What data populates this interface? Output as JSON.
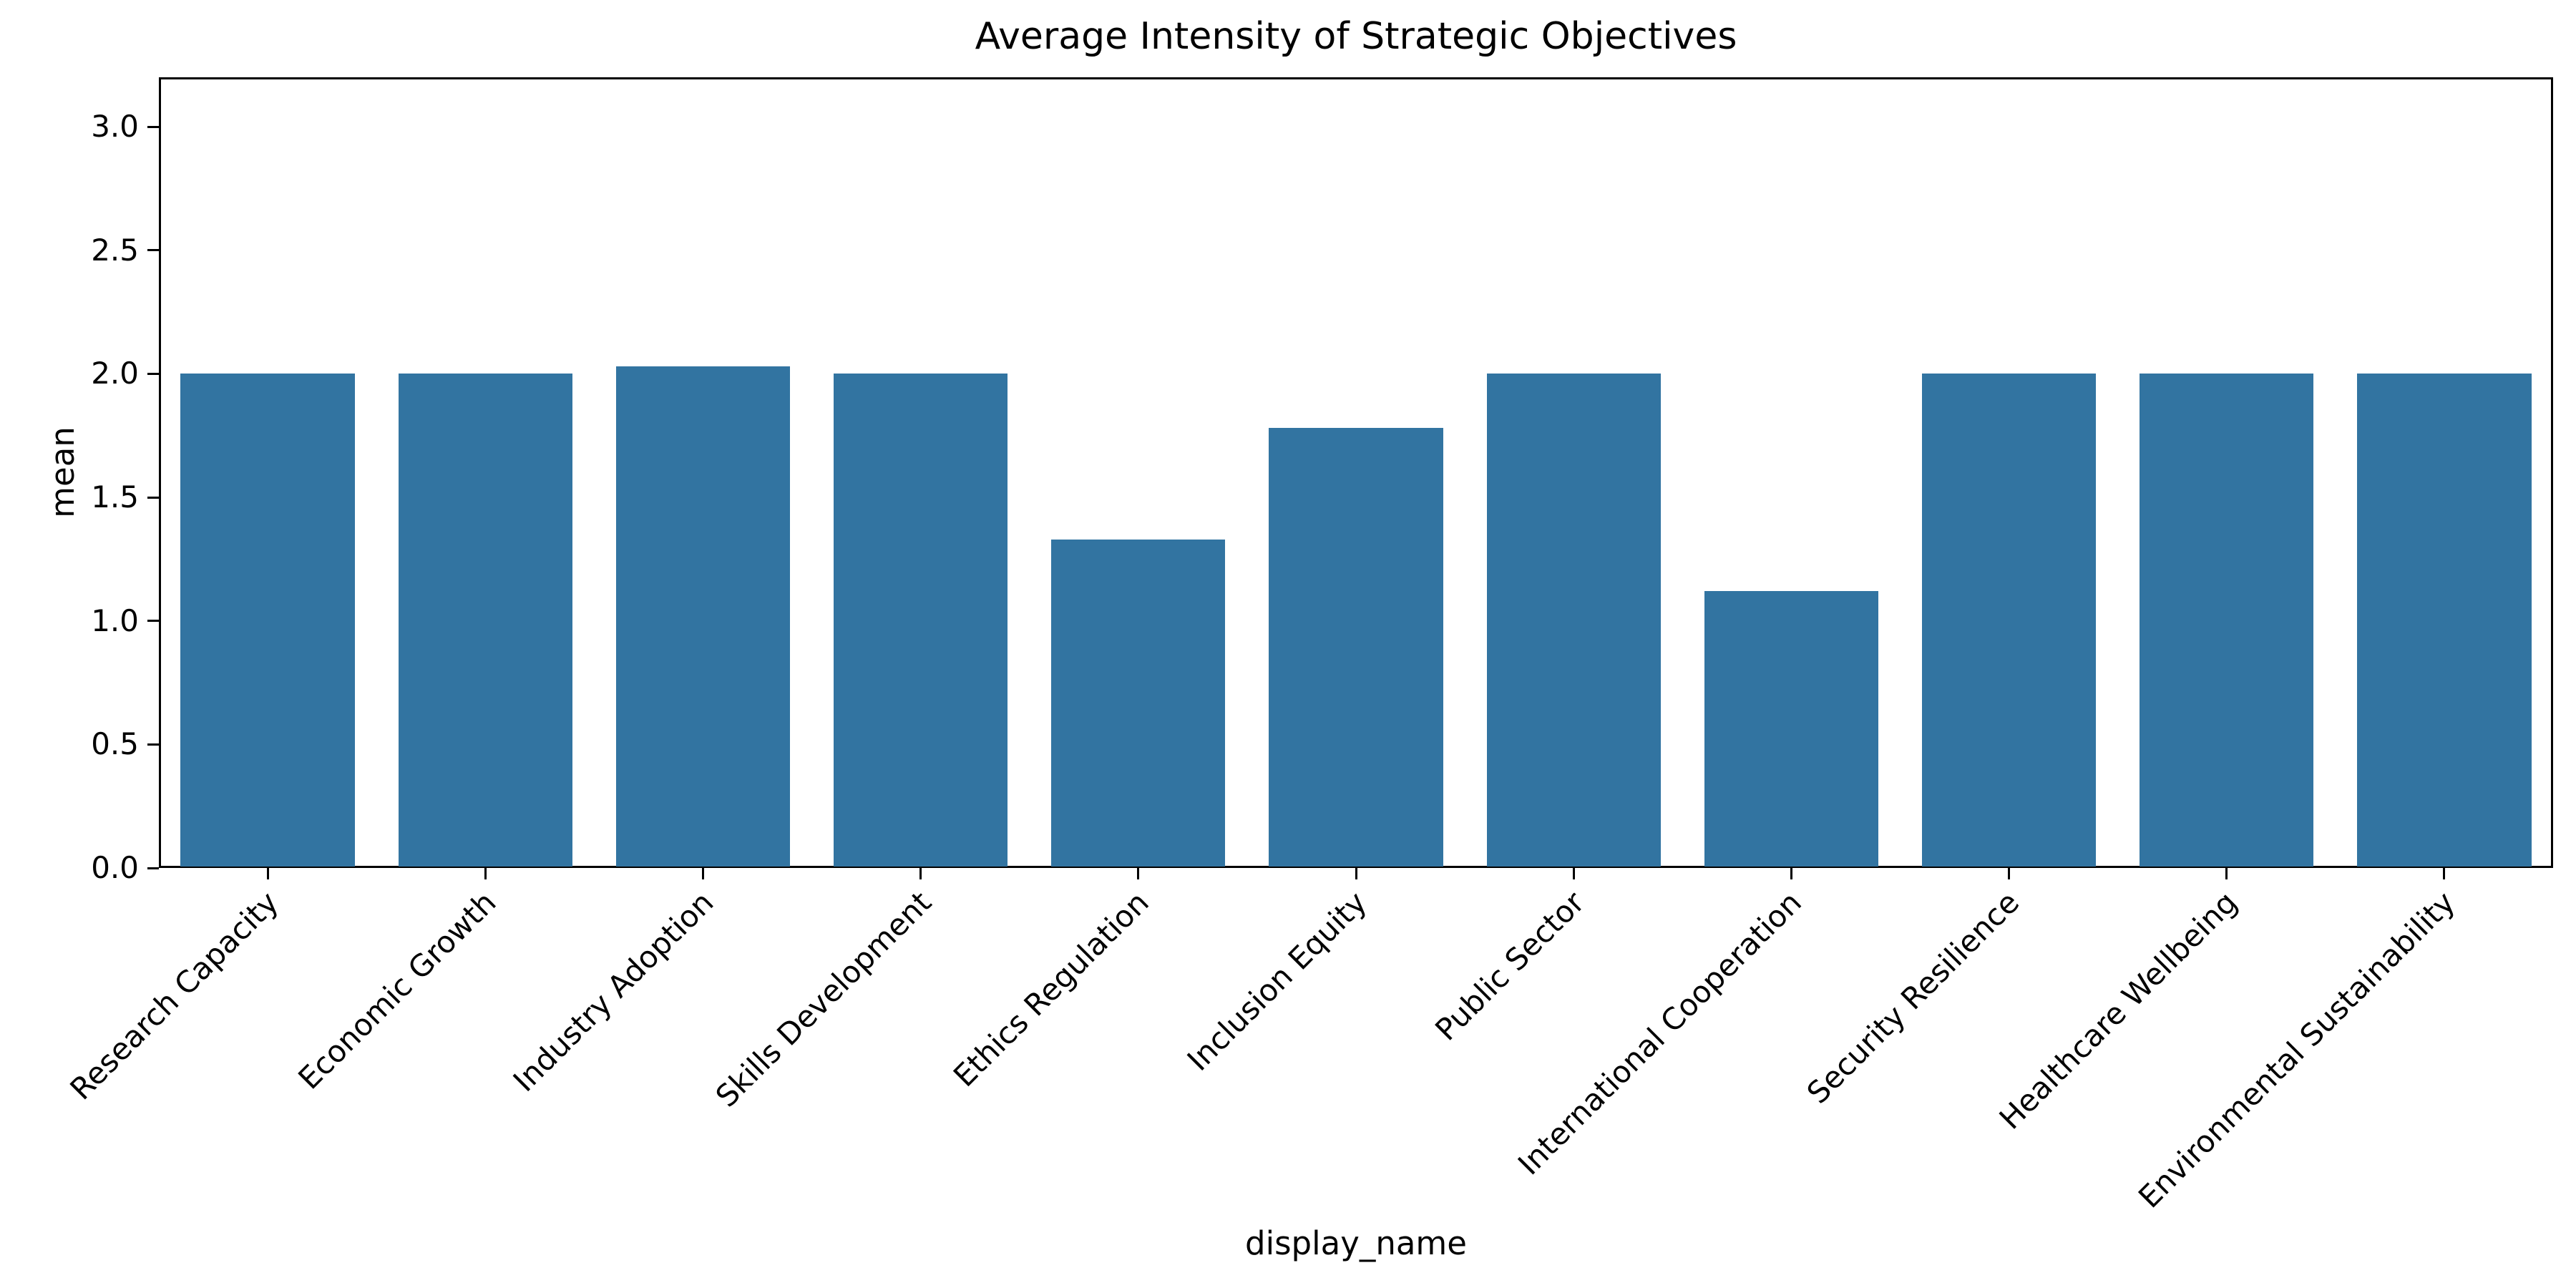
{
  "chart_data": {
    "type": "bar",
    "title": "Average Intensity of Strategic Objectives",
    "xlabel": "display_name",
    "ylabel": "mean",
    "categories": [
      "Research Capacity",
      "Economic Growth",
      "Industry Adoption",
      "Skills Development",
      "Ethics Regulation",
      "Inclusion Equity",
      "Public Sector",
      "International Cooperation",
      "Security Resilience",
      "Healthcare Wellbeing",
      "Environmental Sustainability"
    ],
    "values": [
      2.0,
      2.0,
      2.03,
      2.0,
      1.33,
      1.78,
      2.0,
      1.12,
      2.0,
      2.0,
      2.0
    ],
    "yticks": [
      0.0,
      0.5,
      1.0,
      1.5,
      2.0,
      2.5,
      3.0
    ],
    "ytick_labels": [
      "0.0",
      "0.5",
      "1.0",
      "1.5",
      "2.0",
      "2.5",
      "3.0"
    ],
    "ylim": [
      0,
      3.2
    ],
    "bar_color": "#3274A1",
    "axis_color": "#000000",
    "grid": false,
    "legend_position": "none",
    "x_tick_rotation_deg": 45
  }
}
